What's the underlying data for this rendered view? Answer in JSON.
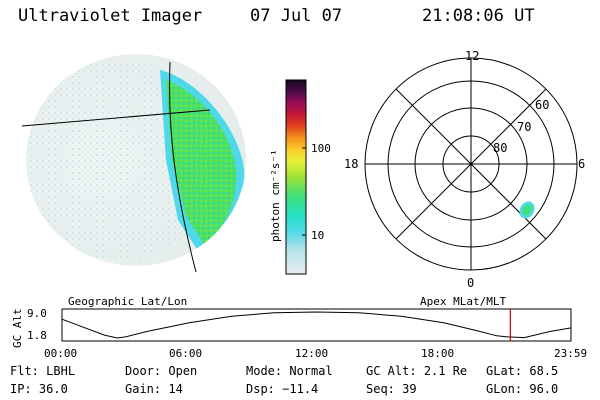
{
  "header": {
    "title": "Ultraviolet Imager",
    "date": "07 Jul 07",
    "time": "21:08:06 UT"
  },
  "colorbar": {
    "unit_label": "photon cm⁻²s⁻¹",
    "tick_labels": [
      "100",
      "10"
    ]
  },
  "polar_plot": {
    "mlt_labels": [
      "12",
      "18",
      "6",
      "0"
    ],
    "lat_labels": [
      "60",
      "70",
      "80"
    ]
  },
  "timeline": {
    "left_label": "Geographic Lat/Lon",
    "right_label": "Apex MLat/MLT",
    "axis_title": "GC Alt",
    "y_ticks": [
      "9.0",
      "1.8"
    ],
    "x_ticks": [
      "00:00",
      "06:00",
      "12:00",
      "18:00",
      "23:59"
    ]
  },
  "info_rows": [
    [
      {
        "key": "Flt:",
        "value": "LBHL"
      },
      {
        "key": "Door:",
        "value": "Open"
      },
      {
        "key": "Mode:",
        "value": "Normal"
      },
      {
        "key": "GC Alt:",
        "value": "2.1 Re"
      },
      {
        "key": "GLat:",
        "value": "68.5"
      }
    ],
    [
      {
        "key": "IP:",
        "value": "36.0"
      },
      {
        "key": "Gain:",
        "value": "14"
      },
      {
        "key": "Dsp:",
        "value": "−11.4"
      },
      {
        "key": "Seq:",
        "value": "39"
      },
      {
        "key": "GLon:",
        "value": "96.0"
      }
    ]
  ],
  "chart_data": [
    {
      "type": "heatmap",
      "colorscale": [
        "#e6eef0",
        "#b9e4e8",
        "#4fd8e8",
        "#27e0c8",
        "#3ee07a",
        "#9ee234",
        "#e8f03a",
        "#fbcd2c",
        "#f5951d",
        "#e2441c",
        "#c51836",
        "#9a0d55",
        "#4b0b47",
        "#150a1e"
      ],
      "colorbar_ticks": [
        10,
        100
      ],
      "colorbar_scale": "log",
      "description_type": "polar auroral image"
    },
    {
      "type": "line",
      "x_ticks": [
        "00:00",
        "06:00",
        "12:00",
        "18:00",
        "23:59"
      ],
      "y_ticks": [
        1.8,
        9.0
      ],
      "ylim": [
        1.8,
        9.0
      ],
      "xlim_hours": [
        0,
        24
      ],
      "x": [
        0,
        1,
        2,
        2.6,
        3,
        4,
        6,
        8,
        10,
        12,
        14,
        16,
        18,
        19.5,
        20.5,
        21,
        21.8,
        23,
        24
      ],
      "y": [
        7.0,
        4.8,
        2.6,
        1.8,
        2.1,
        3.6,
        6.0,
        7.8,
        8.8,
        9.0,
        8.8,
        7.8,
        6.0,
        3.9,
        2.4,
        2.1,
        1.9,
        3.6,
        4.6
      ],
      "marker_hour": 21.14,
      "marker_color": "#cc0000"
    }
  ]
}
